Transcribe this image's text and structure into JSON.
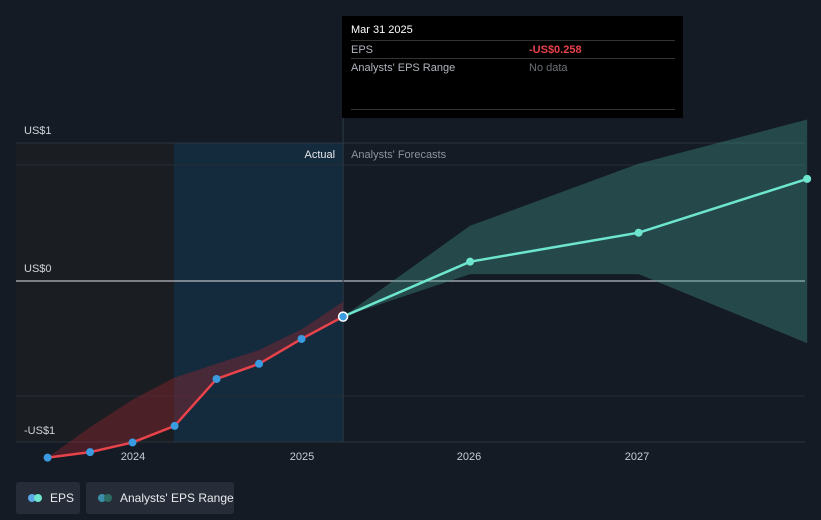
{
  "chart_data": {
    "type": "line",
    "y_axis_labels": {
      "top": "US$1",
      "zero": "US$0",
      "bottom": "-US$1"
    },
    "ylim": [
      -1.3,
      1.0
    ],
    "x_ticks": [
      "2024",
      "2025",
      "2026",
      "2027"
    ],
    "region_labels": {
      "actual": "Actual",
      "forecast": "Analysts' Forecasts"
    },
    "series": [
      {
        "name": "EPS",
        "color": "#e8424a",
        "x": [
          "2023-06-30",
          "2023-09-30",
          "2023-12-31",
          "2024-03-31",
          "2024-06-30",
          "2024-09-30",
          "2024-12-31",
          "2025-03-31"
        ],
        "values": [
          -1.28,
          -1.24,
          -1.17,
          -1.05,
          -0.71,
          -0.6,
          -0.42,
          -0.258
        ]
      },
      {
        "name": "EPS Forecast",
        "color": "#6ee6cf",
        "x": [
          "2025-03-31",
          "2025-12-31",
          "2026-12-31",
          "2027-12-31"
        ],
        "values": [
          -0.258,
          0.14,
          0.35,
          0.74
        ]
      }
    ],
    "actual_range": {
      "x": [
        "2023-06-30",
        "2023-09-30",
        "2023-12-31",
        "2024-03-31",
        "2024-06-30",
        "2024-09-30",
        "2024-12-31",
        "2025-03-31"
      ],
      "low": [
        -1.28,
        -1.24,
        -1.17,
        -1.05,
        -0.71,
        -0.6,
        -0.42,
        -0.258
      ],
      "high": [
        -1.28,
        -1.06,
        -0.86,
        -0.7,
        -0.6,
        -0.5,
        -0.35,
        -0.15
      ]
    },
    "forecast_range": {
      "x": [
        "2025-03-31",
        "2025-12-31",
        "2026-12-31",
        "2027-12-31"
      ],
      "low": [
        -0.258,
        0.05,
        0.05,
        -0.45
      ],
      "high": [
        -0.258,
        0.4,
        0.85,
        1.17
      ]
    },
    "highlight": {
      "date": "Mar 31 2025",
      "eps": "-US$0.258",
      "range": "No data"
    }
  },
  "tooltip": {
    "date": "Mar 31 2025",
    "eps_label": "EPS",
    "eps_value": "-US$0.258",
    "range_label": "Analysts' EPS Range",
    "range_value": "No data"
  },
  "legend": {
    "eps_label": "EPS",
    "range_label": "Analysts' EPS Range",
    "eps_colors": [
      "#5aa9e6",
      "#6ee6cf"
    ],
    "range_colors": [
      "#3a8ea8",
      "#2d6b63"
    ]
  }
}
